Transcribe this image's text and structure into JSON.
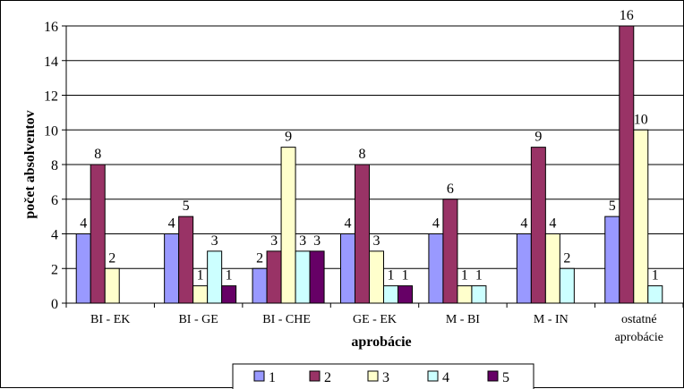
{
  "chart_data": {
    "type": "bar",
    "xlabel": "aprobácie",
    "ylabel": "počet absolventov",
    "ylim": [
      0,
      16
    ],
    "yticks": [
      0,
      2,
      4,
      6,
      8,
      10,
      12,
      14,
      16
    ],
    "grid": true,
    "legend_position": "bottom",
    "categories": [
      [
        "BI - EK"
      ],
      [
        "BI - GE"
      ],
      [
        "BI - CHE"
      ],
      [
        "GE - EK"
      ],
      [
        "M - BI"
      ],
      [
        "M - IN"
      ],
      [
        "ostatné",
        "aprobácie"
      ]
    ],
    "series": [
      {
        "name": "1",
        "color": "#9999ff",
        "values": [
          4,
          4,
          2,
          4,
          4,
          4,
          5
        ]
      },
      {
        "name": "2",
        "color": "#993366",
        "values": [
          8,
          5,
          3,
          8,
          6,
          9,
          16
        ]
      },
      {
        "name": "3",
        "color": "#ffffcc",
        "values": [
          2,
          1,
          9,
          3,
          1,
          4,
          10
        ]
      },
      {
        "name": "4",
        "color": "#ccffff",
        "values": [
          null,
          3,
          3,
          1,
          1,
          2,
          1
        ]
      },
      {
        "name": "5",
        "color": "#660066",
        "values": [
          null,
          1,
          3,
          1,
          null,
          null,
          null
        ]
      }
    ]
  }
}
